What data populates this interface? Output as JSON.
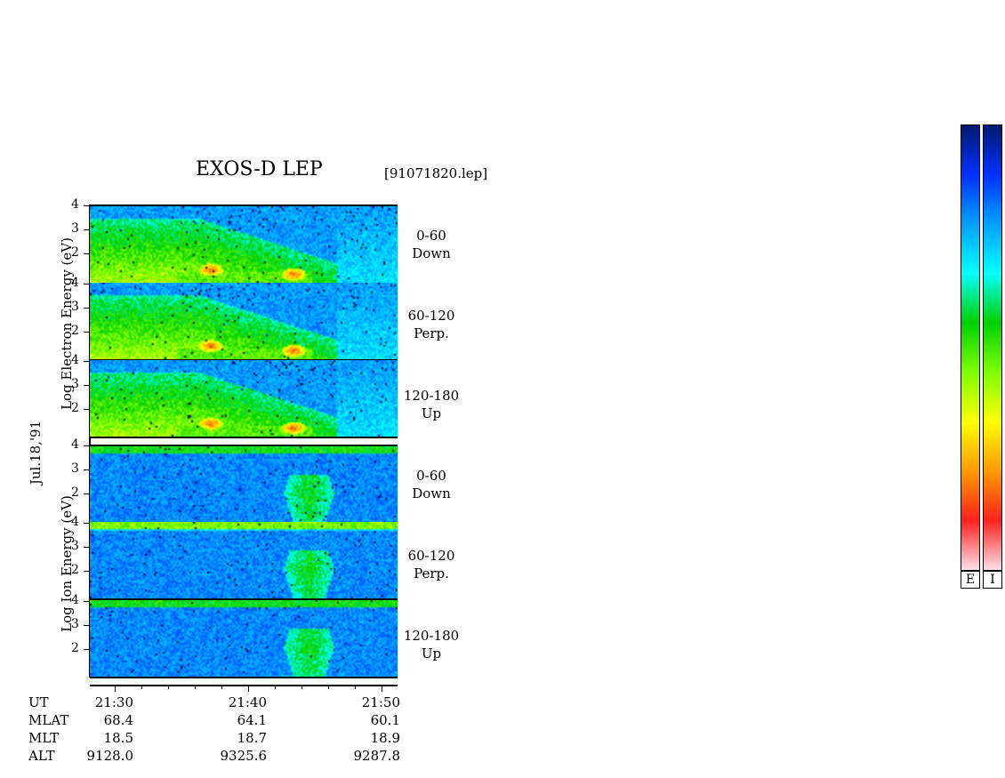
{
  "title": "EXOS-D LEP",
  "file": "[91071820.lep]",
  "date_label": "Jul.18,'91",
  "electron_axis_label": "Log Electron Energy (eV)",
  "ion_axis_label": "Log Ion Energy (eV)",
  "panels": [
    {
      "species": "electron",
      "angle": "0-60",
      "dir": "Down"
    },
    {
      "species": "electron",
      "angle": "60-120",
      "dir": "Perp."
    },
    {
      "species": "electron",
      "angle": "120-180",
      "dir": "Up"
    },
    {
      "species": "ion",
      "angle": "0-60",
      "dir": "Down"
    },
    {
      "species": "ion",
      "angle": "60-120",
      "dir": "Perp."
    },
    {
      "species": "ion",
      "angle": "120-180",
      "dir": "Up"
    }
  ],
  "info": {
    "labels": [
      "UT",
      "MLAT",
      "MLT",
      "ALT"
    ],
    "columns": [
      {
        "values": [
          "21:30",
          "68.4",
          "18.5",
          "9128.0"
        ]
      },
      {
        "values": [
          "21:40",
          "64.1",
          "18.7",
          "9325.6"
        ]
      },
      {
        "values": [
          "21:50",
          "60.1",
          "18.9",
          "9287.8"
        ]
      }
    ]
  },
  "colorbars": {
    "labels": [
      "E",
      "I"
    ]
  },
  "colors": {
    "scale": [
      "#ffe0e8",
      "#ff2020",
      "#ff9900",
      "#ffff00",
      "#80ff00",
      "#00d000",
      "#00ffff",
      "#00a0ff",
      "#0030ff",
      "#001a70"
    ]
  },
  "chart_data": {
    "type": "heatmap",
    "title": "EXOS-D LEP",
    "ylabel": "Log Energy (eV)",
    "yticks": [
      2,
      3,
      4
    ],
    "xticks": [
      "21:30",
      "21:40",
      "21:50"
    ],
    "series": [
      {
        "name": "Electron 0-60 Down"
      },
      {
        "name": "Electron 60-120 Perp."
      },
      {
        "name": "Electron 120-180 Up"
      },
      {
        "name": "Ion 0-60 Down"
      },
      {
        "name": "Ion 60-120 Perp."
      },
      {
        "name": "Ion 120-180 Up"
      }
    ]
  }
}
